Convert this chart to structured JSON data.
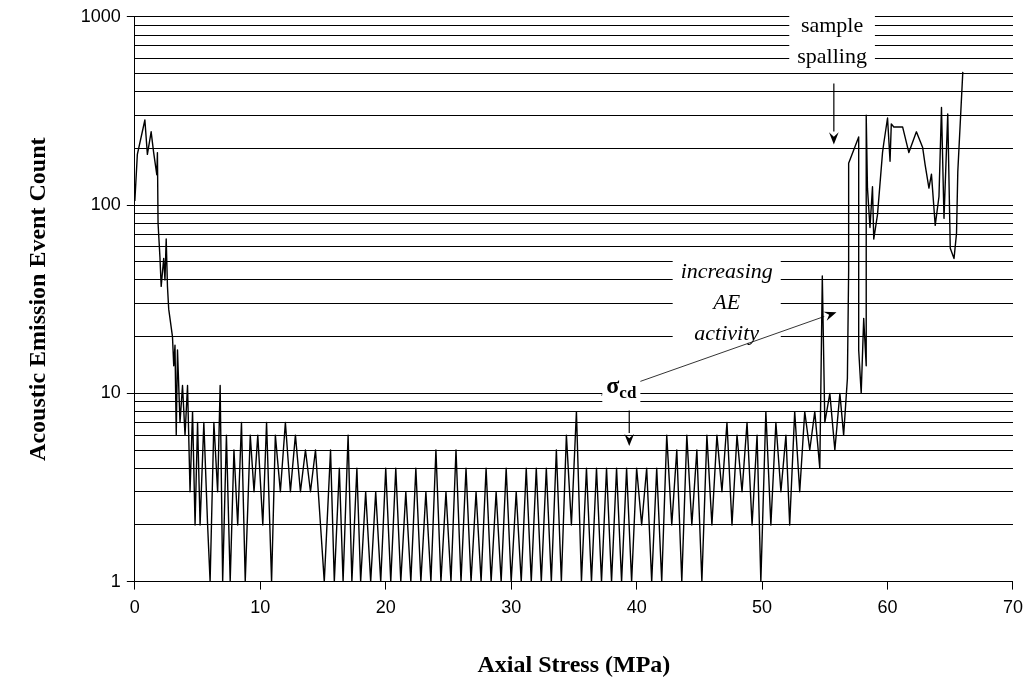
{
  "chart_data": {
    "type": "line",
    "xlabel": "Axial Stress (MPa)",
    "ylabel": "Acoustic Emission Event Count",
    "log": "y",
    "grid": "y",
    "legend": false,
    "marker": "none",
    "line_style": "solid",
    "xlim": [
      0,
      70
    ],
    "xticks": [
      0,
      10,
      20,
      30,
      40,
      50,
      60,
      70
    ],
    "ylim": [
      1,
      1000
    ],
    "yticks": [
      1,
      {
        "value": 2,
        "label": null
      },
      {
        "value": 3,
        "label": null
      },
      {
        "value": 4,
        "label": null
      },
      {
        "value": 5,
        "label": null
      },
      {
        "value": 6,
        "label": null
      },
      {
        "value": 7,
        "label": null
      },
      {
        "value": 8,
        "label": null
      },
      {
        "value": 9,
        "label": null
      },
      10,
      {
        "value": 20,
        "label": null
      },
      {
        "value": 30,
        "label": null
      },
      {
        "value": 40,
        "label": null
      },
      {
        "value": 50,
        "label": null
      },
      {
        "value": 60,
        "label": null
      },
      {
        "value": 70,
        "label": null
      },
      {
        "value": 80,
        "label": null
      },
      {
        "value": 90,
        "label": null
      },
      100,
      {
        "value": 200,
        "label": null
      },
      {
        "value": 300,
        "label": null
      },
      {
        "value": 400,
        "label": null
      },
      {
        "value": 500,
        "label": null
      },
      {
        "value": 600,
        "label": null
      },
      {
        "value": 700,
        "label": null
      },
      {
        "value": 800,
        "label": null
      },
      {
        "value": 900,
        "label": null
      },
      1000
    ],
    "series": [
      {
        "color": "#000000",
        "x": [
          0,
          0.2,
          0.8,
          1.0,
          1.3,
          1.5,
          1.75,
          1.8,
          1.85,
          2.0,
          2.1,
          2.3,
          2.4,
          2.5,
          2.6,
          2.7,
          3.0,
          3.1,
          3.2,
          3.3,
          3.4,
          3.6,
          3.8,
          4.0,
          4.2,
          4.4,
          4.6,
          4.8,
          5.0,
          5.2,
          5.5,
          5.8,
          6.0,
          6.3,
          6.6,
          6.8,
          7.0,
          7.3,
          7.6,
          7.9,
          8.2,
          8.5,
          8.8,
          9.2,
          9.5,
          9.8,
          10.2,
          10.5,
          10.9,
          11.2,
          11.6,
          12.0,
          12.4,
          12.8,
          13.2,
          13.6,
          14.0,
          14.4,
          14.8,
          15.1,
          15.6,
          15.9,
          16.3,
          16.6,
          17.0,
          17.3,
          17.7,
          18.0,
          18.4,
          18.8,
          19.2,
          19.6,
          20.0,
          20.4,
          20.8,
          21.2,
          21.6,
          22.0,
          22.4,
          22.8,
          23.2,
          23.6,
          24.0,
          24.4,
          24.8,
          25.2,
          25.6,
          26.0,
          26.4,
          26.8,
          27.2,
          27.6,
          28.0,
          28.4,
          28.8,
          29.2,
          29.6,
          30.0,
          30.4,
          30.8,
          31.2,
          31.6,
          32.0,
          32.4,
          32.8,
          33.2,
          33.6,
          34.0,
          34.4,
          34.8,
          35.2,
          35.6,
          36.0,
          36.4,
          36.8,
          37.2,
          37.6,
          38.0,
          38.4,
          38.8,
          39.2,
          39.6,
          40.0,
          40.4,
          40.8,
          41.2,
          41.6,
          42.0,
          42.4,
          42.8,
          43.2,
          43.6,
          44.0,
          44.4,
          44.8,
          45.2,
          45.6,
          46.0,
          46.4,
          46.8,
          47.2,
          47.6,
          48.0,
          48.4,
          48.8,
          49.2,
          49.6,
          49.9,
          50.3,
          50.7,
          51.1,
          51.5,
          51.9,
          52.2,
          52.6,
          53.0,
          53.4,
          53.8,
          54.2,
          54.6,
          54.8,
          55.0,
          55.4,
          55.8,
          56.2,
          56.5,
          56.8,
          56.9,
          56.9,
          57.7,
          57.7,
          57.9,
          58.1,
          58.3,
          58.3,
          58.4,
          58.6,
          58.8,
          58.9,
          59.2,
          59.6,
          59.7,
          60.0,
          60.2,
          60.3,
          60.5,
          61.2,
          61.7,
          62.3,
          62.8,
          63.0,
          63.3,
          63.5,
          63.8,
          64.1,
          64.3,
          64.5,
          64.8,
          65.0,
          65.3,
          65.5,
          65.6,
          66.0
        ],
        "values": [
          105,
          186,
          283,
          186,
          245,
          190,
          145,
          190,
          80,
          53,
          37,
          52,
          40,
          66,
          37,
          28,
          20,
          14,
          18,
          6,
          17,
          7,
          11,
          6,
          11,
          3,
          8,
          2,
          7,
          2,
          7,
          2,
          1,
          7,
          3,
          11,
          1,
          6,
          1,
          5,
          2,
          7,
          1,
          6,
          3,
          6,
          2,
          7,
          1,
          6,
          3,
          7,
          3,
          6,
          3,
          5,
          3,
          5,
          2,
          1,
          5,
          1,
          4,
          1,
          6,
          1,
          4,
          1,
          3,
          1,
          3,
          1,
          4,
          1,
          4,
          1,
          3,
          1,
          4,
          1,
          3,
          1,
          5,
          1,
          3,
          1,
          5,
          1,
          4,
          1,
          3,
          1,
          4,
          1,
          3,
          1,
          4,
          1,
          3,
          1,
          4,
          1,
          4,
          1,
          4,
          1,
          5,
          1,
          6,
          2,
          8,
          1,
          4,
          1,
          4,
          1,
          4,
          1,
          4,
          1,
          4,
          1,
          4,
          2,
          4,
          1,
          4,
          1,
          6,
          2,
          5,
          1,
          6,
          2,
          5,
          1,
          6,
          2,
          6,
          3,
          7,
          2,
          6,
          3,
          7,
          2,
          6,
          1,
          8,
          2,
          7,
          3,
          6,
          2,
          8,
          3,
          8,
          5,
          8,
          4,
          42,
          7,
          10,
          5,
          10,
          6,
          12,
          45,
          167,
          230,
          17,
          10,
          25,
          14,
          300,
          123,
          76,
          125,
          66,
          89,
          190,
          213,
          290,
          171,
          270,
          260,
          260,
          190,
          245,
          202,
          163,
          123,
          146,
          78,
          111,
          330,
          85,
          305,
          59,
          52,
          71,
          150,
          510
        ]
      }
    ],
    "annotations": [
      "sample spalling",
      "increasing AE activity",
      "σ$_{cd}$"
    ]
  }
}
